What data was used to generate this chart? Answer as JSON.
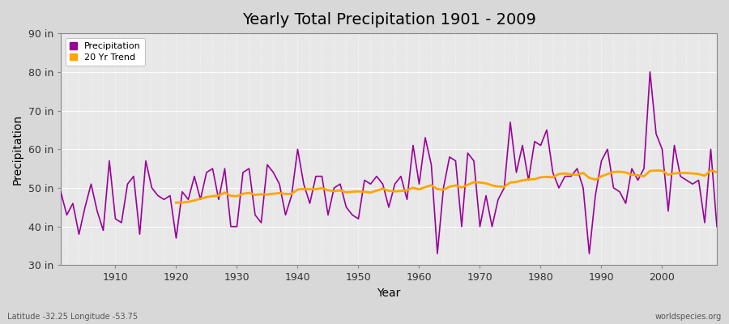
{
  "title": "Yearly Total Precipitation 1901 - 2009",
  "xlabel": "Year",
  "ylabel": "Precipitation",
  "subtitle": "Latitude -32.25 Longitude -53.75",
  "watermark": "worldspecies.org",
  "ylim": [
    30,
    90
  ],
  "yticks": [
    30,
    40,
    50,
    60,
    70,
    80,
    90
  ],
  "ytick_labels": [
    "30 in",
    "40 in",
    "50 in",
    "60 in",
    "70 in",
    "80 in",
    "90 in"
  ],
  "years": [
    1901,
    1902,
    1903,
    1904,
    1905,
    1906,
    1907,
    1908,
    1909,
    1910,
    1911,
    1912,
    1913,
    1914,
    1915,
    1916,
    1917,
    1918,
    1919,
    1920,
    1921,
    1922,
    1923,
    1924,
    1925,
    1926,
    1927,
    1928,
    1929,
    1930,
    1931,
    1932,
    1933,
    1934,
    1935,
    1936,
    1937,
    1938,
    1939,
    1940,
    1941,
    1942,
    1943,
    1944,
    1945,
    1946,
    1947,
    1948,
    1949,
    1950,
    1951,
    1952,
    1953,
    1954,
    1955,
    1956,
    1957,
    1958,
    1959,
    1960,
    1961,
    1962,
    1963,
    1964,
    1965,
    1966,
    1967,
    1968,
    1969,
    1970,
    1971,
    1972,
    1973,
    1974,
    1975,
    1976,
    1977,
    1978,
    1979,
    1980,
    1981,
    1982,
    1983,
    1984,
    1985,
    1986,
    1987,
    1988,
    1989,
    1990,
    1991,
    1992,
    1993,
    1994,
    1995,
    1996,
    1997,
    1998,
    1999,
    2000,
    2001,
    2002,
    2003,
    2004,
    2005,
    2006,
    2007,
    2008,
    2009
  ],
  "precipitation": [
    49,
    43,
    46,
    38,
    45,
    51,
    44,
    39,
    57,
    42,
    41,
    51,
    53,
    38,
    57,
    50,
    48,
    47,
    48,
    37,
    49,
    47,
    53,
    47,
    54,
    55,
    47,
    55,
    40,
    40,
    54,
    55,
    43,
    41,
    56,
    54,
    51,
    43,
    48,
    60,
    51,
    46,
    53,
    53,
    43,
    50,
    51,
    45,
    43,
    42,
    52,
    51,
    53,
    51,
    45,
    51,
    53,
    47,
    61,
    51,
    63,
    56,
    33,
    50,
    58,
    57,
    40,
    59,
    57,
    40,
    48,
    40,
    47,
    50,
    67,
    54,
    61,
    52,
    62,
    61,
    65,
    54,
    50,
    53,
    53,
    55,
    50,
    33,
    48,
    57,
    60,
    50,
    49,
    46,
    55,
    52,
    55,
    80,
    64,
    60,
    44,
    61,
    53,
    52,
    51,
    52,
    41,
    60,
    40
  ],
  "precip_color": "#990099",
  "trend_color": "#FFA500",
  "fig_bg_color": "#d8d8d8",
  "plot_bg_color": "#e8e8e8",
  "grid_color": "#ffffff",
  "legend_labels": [
    "Precipitation",
    "20 Yr Trend"
  ],
  "trend_window": 20,
  "figsize": [
    9.0,
    4.0
  ],
  "dpi": 100
}
